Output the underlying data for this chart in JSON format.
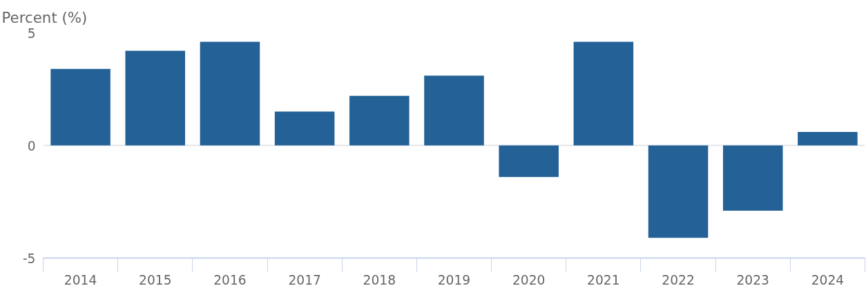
{
  "chart_data": {
    "type": "bar",
    "ylabel": "Percent (%)",
    "categories": [
      "2014",
      "2015",
      "2016",
      "2017",
      "2018",
      "2019",
      "2020",
      "2021",
      "2022",
      "2023",
      "2024"
    ],
    "values": [
      3.4,
      4.2,
      4.6,
      1.5,
      2.2,
      3.1,
      -1.4,
      4.6,
      -4.1,
      -2.9,
      0.6
    ],
    "color": "#236196",
    "ylim": [
      -5,
      5
    ],
    "yticks": [
      {
        "value": -5,
        "label": "-5"
      },
      0,
      5
    ],
    "grid": "y"
  }
}
